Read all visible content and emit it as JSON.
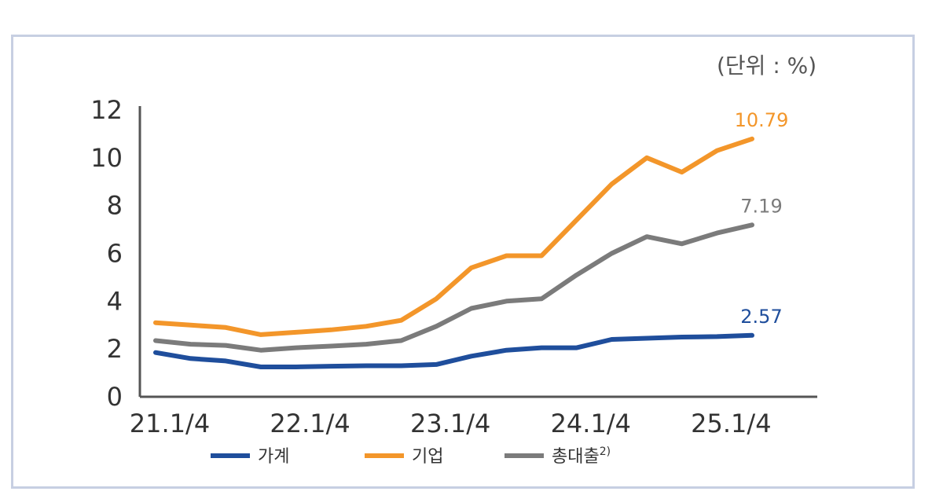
{
  "title": "",
  "unit_label": "(단위 : %)",
  "colors": {
    "household": "#1f4e9c",
    "corporate": "#f3962a",
    "total": "#7b7b7b",
    "axis": "#555555",
    "panel_border": "#c7cfe2"
  },
  "chart_data": {
    "type": "line",
    "title": "",
    "xlabel": "",
    "ylabel": "",
    "ylim": [
      0,
      12
    ],
    "yticks": [
      0,
      2,
      4,
      6,
      8,
      10,
      12
    ],
    "x_tick_labels": [
      "21.1/4",
      "22.1/4",
      "23.1/4",
      "24.1/4",
      "25.1/4"
    ],
    "x_tick_index": [
      0,
      4,
      8,
      12,
      16
    ],
    "series": [
      {
        "key": "household",
        "name": "가계",
        "values": [
          1.85,
          1.6,
          1.5,
          1.25,
          1.25,
          1.28,
          1.3,
          1.3,
          1.35,
          1.7,
          1.95,
          2.05,
          2.05,
          2.4,
          2.45,
          2.5,
          2.52,
          2.57
        ],
        "end_label": "2.57"
      },
      {
        "key": "corporate",
        "name": "기업",
        "values": [
          3.1,
          3.0,
          2.9,
          2.6,
          2.7,
          2.8,
          2.95,
          3.2,
          4.1,
          5.4,
          5.9,
          5.9,
          7.4,
          8.9,
          10.0,
          9.4,
          10.3,
          10.79
        ],
        "end_label": "10.79"
      },
      {
        "key": "total",
        "name": "총대출",
        "superscript": "2)",
        "values": [
          2.35,
          2.2,
          2.15,
          1.95,
          2.05,
          2.12,
          2.2,
          2.35,
          2.95,
          3.7,
          4.0,
          4.1,
          5.1,
          6.0,
          6.7,
          6.4,
          6.85,
          7.19
        ],
        "end_label": "7.19"
      }
    ],
    "legend": "bottom"
  }
}
